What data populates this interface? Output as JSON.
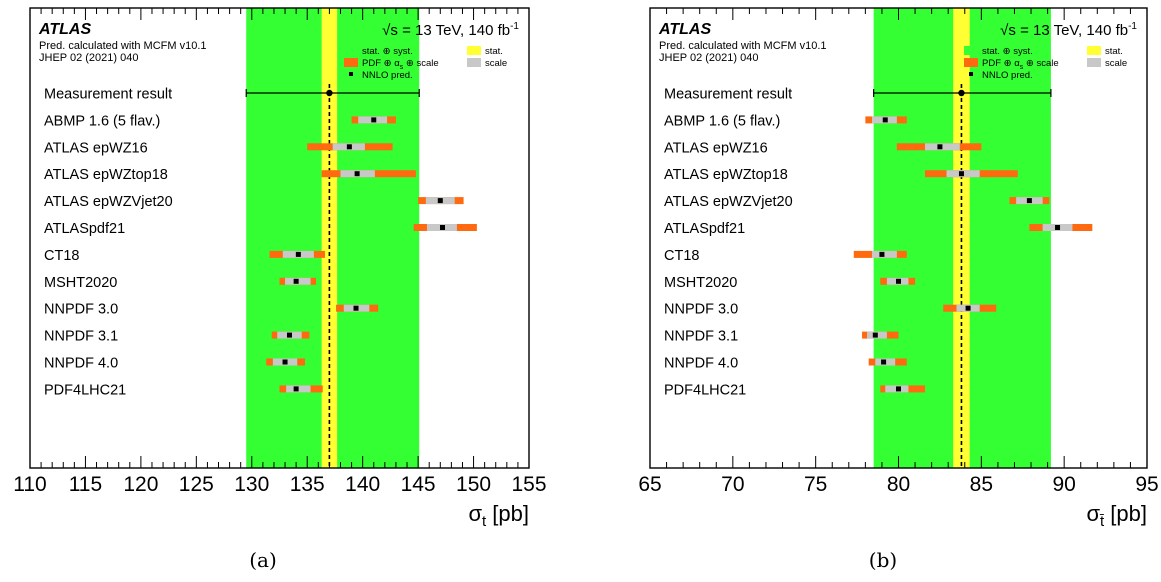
{
  "chart_data": [
    {
      "type": "forest",
      "panel_label": "(a)",
      "experiment": "ATLAS",
      "energy_text": "√s = 13 TeV, 140  fb",
      "energy_sup": "-1",
      "info_lines": [
        "Pred. calculated with MCFM v10.1",
        "JHEP 02 (2021) 040"
      ],
      "legend": {
        "stat_syst": "stat. ⊕ syst.",
        "stat": "stat.",
        "pdf_alphas_scale": "PDF ⊕ α",
        "pdf_alphas_scale_sub": "s",
        "pdf_alphas_scale_tail": " ⊕ scale",
        "scale": "scale",
        "nnlo": "NNLO pred."
      },
      "measurement": {
        "label": "Measurement result",
        "value": 137.0,
        "stat_lo": 136.3,
        "stat_hi": 137.7,
        "total_lo": 129.5,
        "total_hi": 145.1
      },
      "xlabel_main": "σ",
      "xlabel_sub": "t",
      "xlabel_unit": " [pb]",
      "xlim": [
        110,
        155
      ],
      "xticks": [
        110,
        115,
        120,
        125,
        130,
        135,
        140,
        145,
        150,
        155
      ],
      "predictions": [
        {
          "label": "ABMP 1.6 (5 flav.)",
          "value": 141.0,
          "scale_lo": 139.6,
          "scale_hi": 142.2,
          "full_lo": 139.0,
          "full_hi": 143.0
        },
        {
          "label": "ATLAS epWZ16",
          "value": 138.8,
          "scale_lo": 137.3,
          "scale_hi": 140.2,
          "full_lo": 135.0,
          "full_hi": 142.7
        },
        {
          "label": "ATLAS epWZtop18",
          "value": 139.5,
          "scale_lo": 138.0,
          "scale_hi": 141.1,
          "full_lo": 136.3,
          "full_hi": 144.8
        },
        {
          "label": "ATLAS epWZVjet20",
          "value": 147.0,
          "scale_lo": 145.7,
          "scale_hi": 148.3,
          "full_lo": 145.0,
          "full_hi": 149.1
        },
        {
          "label": "ATLASpdf21",
          "value": 147.2,
          "scale_lo": 145.8,
          "scale_hi": 148.5,
          "full_lo": 144.6,
          "full_hi": 150.3
        },
        {
          "label": "CT18",
          "value": 134.2,
          "scale_lo": 132.8,
          "scale_hi": 135.6,
          "full_lo": 131.6,
          "full_hi": 136.6
        },
        {
          "label": "MSHT2020",
          "value": 134.0,
          "scale_lo": 133.0,
          "scale_hi": 135.3,
          "full_lo": 132.5,
          "full_hi": 135.8
        },
        {
          "label": "NNPDF 3.0",
          "value": 139.4,
          "scale_lo": 138.3,
          "scale_hi": 140.6,
          "full_lo": 137.6,
          "full_hi": 141.4
        },
        {
          "label": "NNPDF 3.1",
          "value": 133.4,
          "scale_lo": 132.3,
          "scale_hi": 134.5,
          "full_lo": 131.8,
          "full_hi": 135.2
        },
        {
          "label": "NNPDF 4.0",
          "value": 133.0,
          "scale_lo": 131.9,
          "scale_hi": 134.1,
          "full_lo": 131.3,
          "full_hi": 134.8
        },
        {
          "label": "PDF4LHC21",
          "value": 134.0,
          "scale_lo": 133.1,
          "scale_hi": 135.3,
          "full_lo": 132.5,
          "full_hi": 136.4
        }
      ]
    },
    {
      "type": "forest",
      "panel_label": "(b)",
      "experiment": "ATLAS",
      "energy_text": "√s = 13 TeV, 140  fb",
      "energy_sup": "-1",
      "info_lines": [
        "Pred. calculated with MCFM v10.1",
        "JHEP 02 (2021) 040"
      ],
      "legend": {
        "stat_syst": "stat. ⊕ syst.",
        "stat": "stat.",
        "pdf_alphas_scale": "PDF ⊕ α",
        "pdf_alphas_scale_sub": "s",
        "pdf_alphas_scale_tail": " ⊕ scale",
        "scale": "scale",
        "nnlo": "NNLO pred."
      },
      "measurement": {
        "label": "Measurement result",
        "value": 83.8,
        "stat_lo": 83.3,
        "stat_hi": 84.3,
        "total_lo": 78.5,
        "total_hi": 89.2
      },
      "xlabel_main": "σ",
      "xlabel_sub": "t̄",
      "xlabel_unit": " [pb]",
      "xlim": [
        65,
        95
      ],
      "xticks": [
        65,
        70,
        75,
        80,
        85,
        90,
        95
      ],
      "predictions": [
        {
          "label": "ABMP 1.6 (5 flav.)",
          "value": 79.2,
          "scale_lo": 78.4,
          "scale_hi": 79.9,
          "full_lo": 78.0,
          "full_hi": 80.5
        },
        {
          "label": "ATLAS epWZ16",
          "value": 82.5,
          "scale_lo": 81.6,
          "scale_hi": 83.7,
          "full_lo": 79.9,
          "full_hi": 85.0
        },
        {
          "label": "ATLAS epWZtop18",
          "value": 83.8,
          "scale_lo": 82.9,
          "scale_hi": 84.9,
          "full_lo": 81.6,
          "full_hi": 87.2
        },
        {
          "label": "ATLAS epWZVjet20",
          "value": 87.9,
          "scale_lo": 87.1,
          "scale_hi": 88.7,
          "full_lo": 86.7,
          "full_hi": 89.1
        },
        {
          "label": "ATLASpdf21",
          "value": 89.6,
          "scale_lo": 88.7,
          "scale_hi": 90.5,
          "full_lo": 87.9,
          "full_hi": 91.7
        },
        {
          "label": "CT18",
          "value": 79.0,
          "scale_lo": 78.4,
          "scale_hi": 79.9,
          "full_lo": 77.3,
          "full_hi": 80.5
        },
        {
          "label": "MSHT2020",
          "value": 80.0,
          "scale_lo": 79.3,
          "scale_hi": 80.6,
          "full_lo": 78.9,
          "full_hi": 81.0
        },
        {
          "label": "NNPDF 3.0",
          "value": 84.2,
          "scale_lo": 83.5,
          "scale_hi": 84.9,
          "full_lo": 82.7,
          "full_hi": 85.9
        },
        {
          "label": "NNPDF 3.1",
          "value": 78.6,
          "scale_lo": 78.1,
          "scale_hi": 79.3,
          "full_lo": 77.8,
          "full_hi": 80.0
        },
        {
          "label": "NNPDF 4.0",
          "value": 79.1,
          "scale_lo": 78.6,
          "scale_hi": 79.8,
          "full_lo": 78.2,
          "full_hi": 80.5
        },
        {
          "label": "PDF4LHC21",
          "value": 80.0,
          "scale_lo": 79.2,
          "scale_hi": 80.6,
          "full_lo": 78.9,
          "full_hi": 81.6
        }
      ]
    }
  ],
  "colors": {
    "stat_syst": "#33ff33",
    "stat": "#ffff33",
    "pdf": "#ff6a10",
    "scale": "#c8c8c8",
    "marker": "#000000",
    "frame": "#000000"
  }
}
